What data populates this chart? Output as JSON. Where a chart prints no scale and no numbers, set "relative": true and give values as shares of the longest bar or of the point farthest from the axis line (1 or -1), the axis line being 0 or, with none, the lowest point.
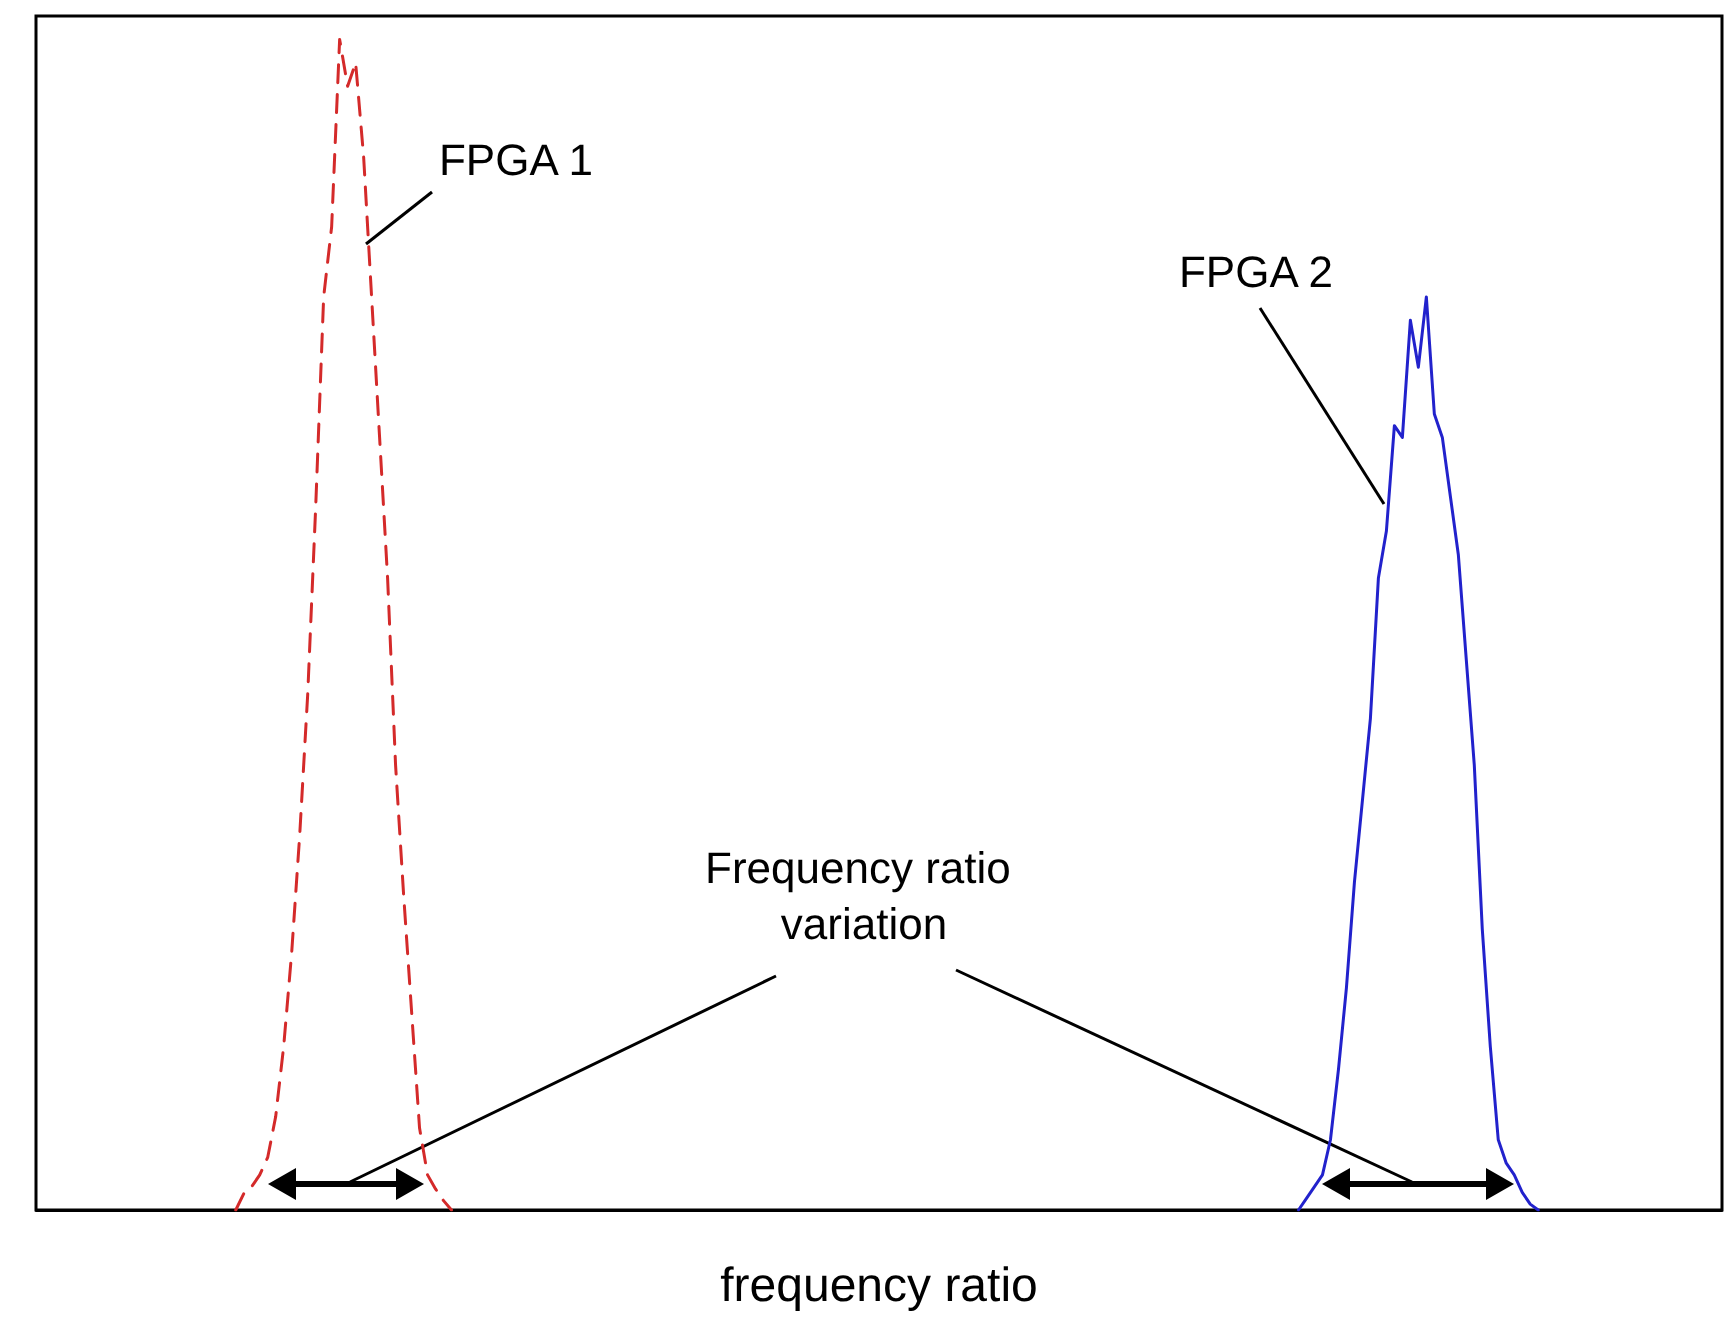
{
  "chart_data": {
    "type": "line",
    "relative": true,
    "xlabel": "frequency ratio",
    "legend": false,
    "grid": false,
    "marker": "none",
    "categories": [
      null,
      null,
      null,
      null,
      null,
      null,
      null,
      null,
      null,
      null,
      null,
      null,
      null,
      null,
      null,
      null,
      null,
      null,
      null,
      null,
      null,
      null,
      null,
      null,
      null,
      null,
      null,
      null,
      null,
      null,
      null,
      null,
      null,
      null,
      null,
      null,
      null,
      null,
      null,
      null,
      null,
      null,
      null,
      null,
      null,
      null,
      null,
      null,
      null,
      null,
      null,
      null,
      null,
      null,
      null,
      null,
      null,
      null,
      null,
      null,
      null,
      null,
      null,
      null,
      null,
      null,
      null,
      null,
      null,
      null,
      null,
      null,
      null,
      null,
      null,
      null,
      null,
      null,
      null,
      null,
      null,
      null,
      null,
      null,
      null,
      null,
      null,
      null,
      null,
      null,
      null,
      null,
      null,
      null,
      null,
      null,
      null,
      null,
      null,
      null,
      null,
      null,
      null,
      null,
      null,
      null,
      null,
      null,
      null,
      null,
      null,
      null,
      null,
      null,
      null,
      null,
      null,
      null,
      null,
      null,
      null,
      null,
      null,
      null,
      null,
      null,
      null,
      null,
      null,
      null,
      null,
      null,
      null,
      null,
      null,
      null,
      null,
      null,
      null,
      null,
      null,
      null,
      null,
      null,
      null,
      null,
      null,
      null,
      null,
      null,
      null,
      null,
      null,
      null,
      null,
      null,
      null,
      null,
      null,
      null,
      null,
      null,
      null,
      null,
      null,
      null,
      null,
      null,
      null,
      null,
      null,
      null,
      null,
      null,
      null,
      null,
      null,
      null,
      null,
      null,
      null,
      null,
      null,
      null,
      null,
      null,
      null,
      null,
      null,
      null,
      null,
      null,
      null,
      null,
      null,
      null,
      null,
      null,
      null,
      null,
      null,
      null,
      null,
      null,
      null,
      null,
      null,
      null,
      null,
      null,
      null,
      null
    ],
    "series": [
      {
        "name": "FPGA 1",
        "color": "#d42a2a",
        "line_style": "dashed",
        "values": [
          null,
          null,
          null,
          null,
          null,
          null,
          null,
          null,
          null,
          null,
          null,
          null,
          null,
          null,
          null,
          null,
          null,
          null,
          null,
          null,
          null,
          null,
          null,
          null,
          null,
          0,
          0.014,
          0.02,
          0.03,
          0.045,
          0.08,
          0.14,
          0.22,
          0.32,
          0.44,
          0.6,
          0.78,
          0.84,
          1.0,
          0.96,
          0.98,
          0.9,
          0.78,
          0.66,
          0.54,
          0.38,
          0.27,
          0.17,
          0.07,
          0.03,
          0.018,
          0.008,
          0,
          null,
          null,
          null,
          null,
          null,
          null,
          null,
          null,
          null,
          null,
          null,
          null,
          null,
          null,
          null,
          null,
          null,
          null,
          null,
          null,
          null,
          null,
          null,
          null,
          null,
          null,
          null,
          null,
          null,
          null,
          null,
          null,
          null,
          null,
          null,
          null,
          null,
          null,
          null,
          null,
          null,
          null,
          null,
          null,
          null,
          null,
          null,
          null,
          null,
          null,
          null,
          null,
          null,
          null,
          null,
          null,
          null,
          null,
          null,
          null,
          null,
          null,
          null,
          null,
          null,
          null,
          null,
          null,
          null,
          null,
          null,
          null,
          null,
          null,
          null,
          null,
          null,
          null,
          null,
          null,
          null,
          null,
          null,
          null,
          null,
          null,
          null,
          null,
          null,
          null,
          null,
          null,
          null,
          null,
          null,
          null,
          null,
          null,
          null,
          null,
          null,
          null,
          null,
          null,
          null,
          null,
          null,
          null,
          null,
          null,
          null,
          null,
          null,
          null,
          null,
          null,
          null,
          null,
          null,
          null,
          null,
          null,
          null,
          null,
          null,
          null,
          null,
          null,
          null,
          null,
          null,
          null,
          null,
          null,
          null,
          null,
          null,
          null,
          null,
          null,
          null,
          null,
          null,
          null,
          null,
          null,
          null,
          null,
          null,
          null,
          null,
          null,
          null,
          null,
          null,
          null,
          null,
          null,
          null
        ]
      },
      {
        "name": "FPGA 2",
        "color": "#2222cc",
        "line_style": "solid",
        "values": [
          null,
          null,
          null,
          null,
          null,
          null,
          null,
          null,
          null,
          null,
          null,
          null,
          null,
          null,
          null,
          null,
          null,
          null,
          null,
          null,
          null,
          null,
          null,
          null,
          null,
          null,
          null,
          null,
          null,
          null,
          null,
          null,
          null,
          null,
          null,
          null,
          null,
          null,
          null,
          null,
          null,
          null,
          null,
          null,
          null,
          null,
          null,
          null,
          null,
          null,
          null,
          null,
          null,
          null,
          null,
          null,
          null,
          null,
          null,
          null,
          null,
          null,
          null,
          null,
          null,
          null,
          null,
          null,
          null,
          null,
          null,
          null,
          null,
          null,
          null,
          null,
          null,
          null,
          null,
          null,
          null,
          null,
          null,
          null,
          null,
          null,
          null,
          null,
          null,
          null,
          null,
          null,
          null,
          null,
          null,
          null,
          null,
          null,
          null,
          null,
          null,
          null,
          null,
          null,
          null,
          null,
          null,
          null,
          null,
          null,
          null,
          null,
          null,
          null,
          null,
          null,
          null,
          null,
          null,
          null,
          null,
          null,
          null,
          null,
          null,
          null,
          null,
          null,
          null,
          null,
          null,
          null,
          null,
          null,
          null,
          null,
          null,
          null,
          null,
          null,
          null,
          null,
          null,
          null,
          null,
          null,
          null,
          null,
          null,
          null,
          null,
          null,
          null,
          null,
          null,
          null,
          null,
          null,
          0,
          0.01,
          0.02,
          0.03,
          0.06,
          0.12,
          0.19,
          0.28,
          0.35,
          0.42,
          0.54,
          0.58,
          0.67,
          0.66,
          0.76,
          0.72,
          0.78,
          0.68,
          0.66,
          0.61,
          0.56,
          0.47,
          0.38,
          0.24,
          0.14,
          0.06,
          0.04,
          0.03,
          0.015,
          0.005,
          0,
          null,
          null,
          null,
          null,
          null,
          null,
          null,
          null,
          null,
          null,
          null,
          null,
          null,
          null,
          null,
          null,
          null,
          null,
          null,
          null,
          null,
          null,
          null
        ]
      }
    ],
    "annotations": [
      "Frequency ratio variation"
    ]
  }
}
